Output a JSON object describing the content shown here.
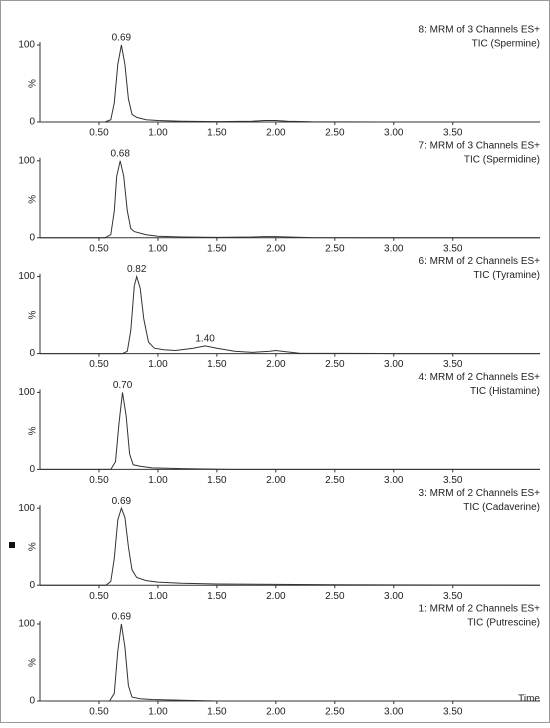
{
  "chart_data": [
    {
      "type": "line",
      "title": [
        "8: MRM of 3 Channels ES+",
        "TIC (Spermine)"
      ],
      "ylabel": "%",
      "color": "#333333",
      "x": [
        0,
        0.55,
        0.6,
        0.63,
        0.66,
        0.69,
        0.72,
        0.75,
        0.78,
        0.82,
        0.9,
        1.0,
        1.2,
        1.5,
        1.8,
        1.9,
        2.0,
        2.1,
        2.3,
        3.0,
        4.24
      ],
      "values": [
        0,
        0,
        3,
        25,
        75,
        100,
        75,
        30,
        10,
        6,
        3,
        2,
        1,
        0.5,
        1,
        2,
        2,
        1,
        0.3,
        0,
        0
      ],
      "annotations": [
        {
          "label": "0.69",
          "x": 0.69,
          "y": 100
        }
      ],
      "xlim": [
        0,
        4.24
      ],
      "ylim": [
        0,
        100
      ],
      "xticks": [
        {
          "value": 0.5,
          "label": "0.50"
        },
        {
          "value": 1,
          "label": "1.00"
        },
        {
          "value": 1.5,
          "label": "1.50"
        },
        {
          "value": 2,
          "label": "2.00"
        },
        {
          "value": 2.5,
          "label": "2.50"
        },
        {
          "value": 3,
          "label": "3.00"
        },
        {
          "value": 3.5,
          "label": "3.50"
        }
      ],
      "yticks": [
        0,
        100
      ]
    },
    {
      "type": "line",
      "title": [
        "7: MRM of 3 Channels ES+",
        "TIC (Spermidine)"
      ],
      "ylabel": "%",
      "color": "#333333",
      "x": [
        0,
        0.55,
        0.6,
        0.63,
        0.65,
        0.68,
        0.71,
        0.74,
        0.77,
        0.8,
        0.9,
        1.0,
        1.2,
        1.5,
        1.8,
        1.9,
        2.0,
        2.1,
        2.3,
        3.0,
        4.24
      ],
      "values": [
        0,
        0,
        4,
        35,
        80,
        100,
        80,
        35,
        12,
        8,
        4,
        2,
        1,
        0.5,
        1,
        1.5,
        1.5,
        1,
        0.3,
        0,
        0
      ],
      "annotations": [
        {
          "label": "0.68",
          "x": 0.68,
          "y": 100
        }
      ],
      "xlim": [
        0,
        4.24
      ],
      "ylim": [
        0,
        100
      ],
      "xticks": [
        {
          "value": 0.5,
          "label": "0.50"
        },
        {
          "value": 1,
          "label": "1.00"
        },
        {
          "value": 1.5,
          "label": "1.50"
        },
        {
          "value": 2,
          "label": "2.00"
        },
        {
          "value": 2.5,
          "label": "2.50"
        },
        {
          "value": 3,
          "label": "3.00"
        },
        {
          "value": 3.5,
          "label": "3.50"
        }
      ],
      "yticks": [
        0,
        100
      ]
    },
    {
      "type": "line",
      "title": [
        "6: MRM of 2 Channels ES+",
        "TIC (Tyramine)"
      ],
      "ylabel": "%",
      "color": "#333333",
      "x": [
        0,
        0.7,
        0.74,
        0.77,
        0.8,
        0.82,
        0.85,
        0.88,
        0.92,
        0.97,
        1.05,
        1.15,
        1.3,
        1.4,
        1.5,
        1.65,
        1.8,
        1.95,
        2.0,
        2.05,
        2.2,
        3.0,
        4.24
      ],
      "values": [
        0,
        0,
        3,
        30,
        88,
        100,
        85,
        45,
        15,
        7,
        5,
        4,
        7,
        10,
        7,
        3,
        1.5,
        3,
        4,
        3,
        0.5,
        0,
        0
      ],
      "annotations": [
        {
          "label": "0.82",
          "x": 0.82,
          "y": 100
        },
        {
          "label": "1.40",
          "x": 1.4,
          "y": 10
        }
      ],
      "xlim": [
        0,
        4.24
      ],
      "ylim": [
        0,
        100
      ],
      "xticks": [
        {
          "value": 0.5,
          "label": "0.50"
        },
        {
          "value": 1,
          "label": "1.00"
        },
        {
          "value": 1.5,
          "label": "1.50"
        },
        {
          "value": 2,
          "label": "2.00"
        },
        {
          "value": 2.5,
          "label": "2.50"
        },
        {
          "value": 3,
          "label": "3.00"
        },
        {
          "value": 3.5,
          "label": "3.50"
        }
      ],
      "yticks": [
        0,
        100
      ]
    },
    {
      "type": "line",
      "title": [
        "4: MRM of 2 Channels ES+",
        "TIC (Histamine)"
      ],
      "ylabel": "%",
      "color": "#333333",
      "x": [
        0,
        0.6,
        0.64,
        0.67,
        0.7,
        0.73,
        0.76,
        0.79,
        0.85,
        0.95,
        1.2,
        1.6,
        4.24
      ],
      "values": [
        0,
        0,
        10,
        60,
        100,
        70,
        20,
        6,
        4,
        2,
        1,
        0,
        0
      ],
      "annotations": [
        {
          "label": "0.70",
          "x": 0.7,
          "y": 100
        }
      ],
      "xlim": [
        0,
        4.24
      ],
      "ylim": [
        0,
        100
      ],
      "xticks": [
        {
          "value": 0.5,
          "label": "0.50"
        },
        {
          "value": 1,
          "label": "1.00"
        },
        {
          "value": 1.5,
          "label": "1.50"
        },
        {
          "value": 2,
          "label": "2.00"
        },
        {
          "value": 2.5,
          "label": "2.50"
        },
        {
          "value": 3,
          "label": "3.00"
        },
        {
          "value": 3.5,
          "label": "3.50"
        }
      ],
      "yticks": [
        0,
        100
      ]
    },
    {
      "type": "line",
      "title": [
        "3: MRM of 2 Channels ES+",
        "TIC (Cadaverine)"
      ],
      "ylabel": "%",
      "color": "#333333",
      "x": [
        0,
        0.56,
        0.6,
        0.63,
        0.66,
        0.69,
        0.72,
        0.75,
        0.78,
        0.82,
        0.9,
        1.0,
        1.2,
        1.5,
        2.0,
        2.5,
        4.24
      ],
      "values": [
        0,
        0,
        5,
        35,
        85,
        100,
        88,
        50,
        20,
        10,
        6,
        4,
        2.5,
        1.5,
        1,
        0.5,
        0
      ],
      "annotations": [
        {
          "label": "0.69",
          "x": 0.69,
          "y": 100
        }
      ],
      "xlim": [
        0,
        4.24
      ],
      "ylim": [
        0,
        100
      ],
      "xticks": [
        {
          "value": 0.5,
          "label": "0.50"
        },
        {
          "value": 1,
          "label": "1.00"
        },
        {
          "value": 1.5,
          "label": "1.50"
        },
        {
          "value": 2,
          "label": "2.00"
        },
        {
          "value": 2.5,
          "label": "2.50"
        },
        {
          "value": 3,
          "label": "3.00"
        },
        {
          "value": 3.5,
          "label": "3.50"
        }
      ],
      "yticks": [
        0,
        100
      ]
    },
    {
      "type": "line",
      "title": [
        "1: MRM of 2 Channels ES+",
        "TIC (Putrescine)"
      ],
      "ylabel": "%",
      "color": "#333333",
      "xlabel": "Time",
      "x": [
        0,
        0.59,
        0.63,
        0.66,
        0.69,
        0.72,
        0.75,
        0.78,
        0.85,
        0.95,
        1.2,
        1.5,
        4.24
      ],
      "values": [
        0,
        0,
        10,
        65,
        100,
        70,
        20,
        5,
        3,
        2,
        1,
        0,
        0
      ],
      "annotations": [
        {
          "label": "0.69",
          "x": 0.69,
          "y": 100
        }
      ],
      "xlim": [
        0,
        4.24
      ],
      "ylim": [
        0,
        100
      ],
      "xticks": [
        {
          "value": 0.5,
          "label": "0.50"
        },
        {
          "value": 1,
          "label": "1.00"
        },
        {
          "value": 1.5,
          "label": "1.50"
        },
        {
          "value": 2,
          "label": "2.00"
        },
        {
          "value": 2.5,
          "label": "2.50"
        },
        {
          "value": 3,
          "label": "3.00"
        },
        {
          "value": 3.5,
          "label": "3.50"
        }
      ],
      "yticks": [
        0,
        100
      ]
    }
  ]
}
